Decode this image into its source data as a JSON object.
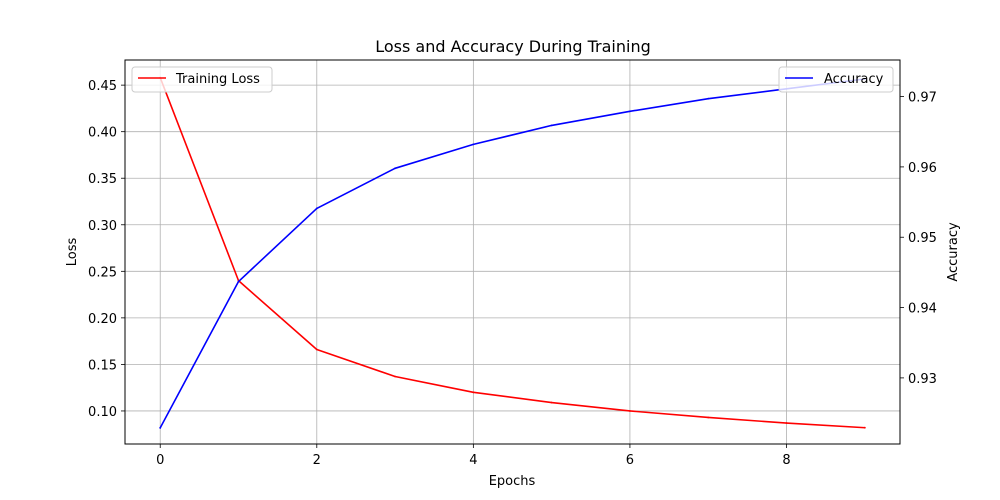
{
  "chart_data": {
    "type": "line",
    "title": "Loss and Accuracy During Training",
    "xlabel": "Epochs",
    "ylabel_left": "Loss",
    "ylabel_right": "Accuracy",
    "x": [
      0,
      1,
      2,
      3,
      4,
      5,
      6,
      7,
      8,
      9
    ],
    "xlim": [
      -0.45,
      9.45
    ],
    "xticks": [
      "0",
      "2",
      "4",
      "6",
      "8"
    ],
    "ylim_left": [
      0.0645,
      0.477
    ],
    "ylim_right": [
      0.9206,
      0.9752
    ],
    "yticks_left": [
      "0.10",
      "0.15",
      "0.20",
      "0.25",
      "0.30",
      "0.35",
      "0.40",
      "0.45"
    ],
    "yticks_right": [
      "0.93",
      "0.94",
      "0.95",
      "0.96",
      "0.97"
    ],
    "grid": true,
    "series": [
      {
        "name": "Training Loss",
        "axis": "left",
        "color": "#ff0000",
        "values": [
          0.458,
          0.24,
          0.166,
          0.137,
          0.12,
          0.109,
          0.1,
          0.093,
          0.087,
          0.082
        ],
        "legend_position": "top-left"
      },
      {
        "name": "Accuracy",
        "axis": "right",
        "color": "#0000ff",
        "values": [
          0.9229,
          0.9437,
          0.9541,
          0.9598,
          0.9632,
          0.9659,
          0.9679,
          0.9697,
          0.9711,
          0.9725
        ],
        "legend_position": "top-right"
      }
    ]
  }
}
